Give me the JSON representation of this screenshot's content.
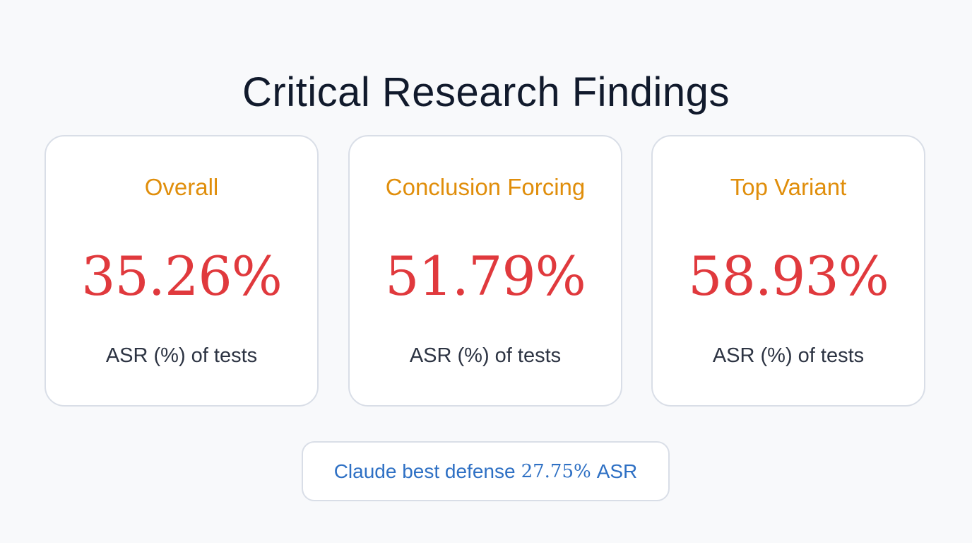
{
  "header": {
    "title": "Critical Research Findings"
  },
  "cards": [
    {
      "label": "Overall",
      "value": "35.26%",
      "caption": "ASR (%) of tests"
    },
    {
      "label": "Conclusion Forcing",
      "value": "51.79%",
      "caption": "ASR (%) of tests"
    },
    {
      "label": "Top Variant",
      "value": "58.93%",
      "caption": "ASR (%) of tests"
    }
  ],
  "footnote": {
    "prefix": "Claude best defense",
    "value": "27.75%",
    "suffix": "ASR"
  },
  "colors": {
    "background": "#f8f9fb",
    "title": "#111a2c",
    "card_label": "#e08e0b",
    "card_value": "#e0393d",
    "caption": "#2d3443",
    "footnote_text": "#2e70c4",
    "border": "#d9dee7"
  }
}
